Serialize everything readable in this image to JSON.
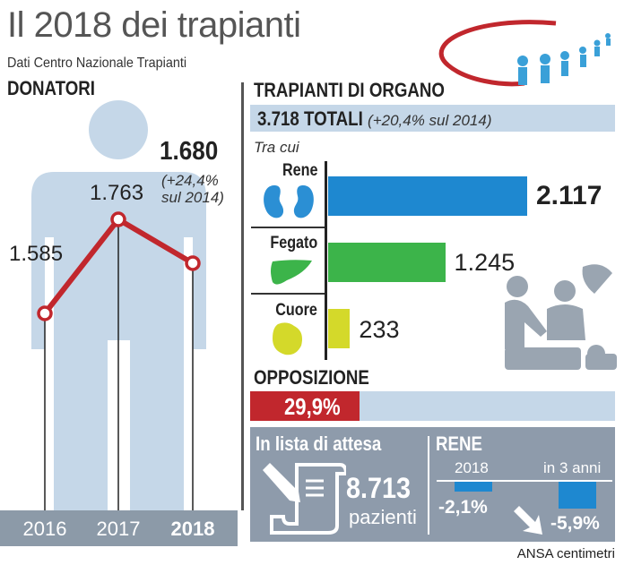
{
  "header": {
    "title": "Il 2018 dei trapianti",
    "subtitle": "Dati Centro Nazionale Trapianti"
  },
  "donatori": {
    "heading": "DONATORI",
    "highlight_value": "1.680",
    "highlight_note_1": "(+24,4%",
    "highlight_note_2": "sul 2014)",
    "labels": [
      "1.585",
      "1.763"
    ]
  },
  "trapianti": {
    "heading": "TRAPIANTI DI ORGANO",
    "total": "3.718 TOTALI",
    "total_note": "(+20,4% sul 2014)",
    "among": "Tra cui",
    "value_labels": [
      "2.117",
      "1.245",
      "233"
    ]
  },
  "opposizione": {
    "heading": "OPPOSIZIONE",
    "value_label": "29,9%",
    "value": 29.9
  },
  "attesa": {
    "heading": "In lista di attesa",
    "value": "8.713",
    "unit": "pazienti"
  },
  "rene": {
    "heading": "RENE",
    "col1": "2018",
    "col2": "in 3 anni",
    "val1_label": "-2,1%",
    "val2_label": "-5,9%",
    "val1": -2.1,
    "val2": -5.9
  },
  "credit": "ANSA centimetri",
  "colors": {
    "rene": "#1e88d0",
    "fegato": "#3cb44a",
    "cuore": "#d4d92a",
    "line": "#c1272d",
    "silhouette": "#c5d7e8"
  },
  "chart_data": [
    {
      "type": "line",
      "title": "DONATORI",
      "categories": [
        "2016",
        "2017",
        "2018"
      ],
      "values": [
        1585,
        1763,
        1680
      ]
    },
    {
      "type": "bar",
      "orientation": "horizontal",
      "title": "TRAPIANTI DI ORGANO",
      "categories": [
        "Rene",
        "Fegato",
        "Cuore"
      ],
      "values": [
        2117,
        1245,
        233
      ]
    }
  ]
}
